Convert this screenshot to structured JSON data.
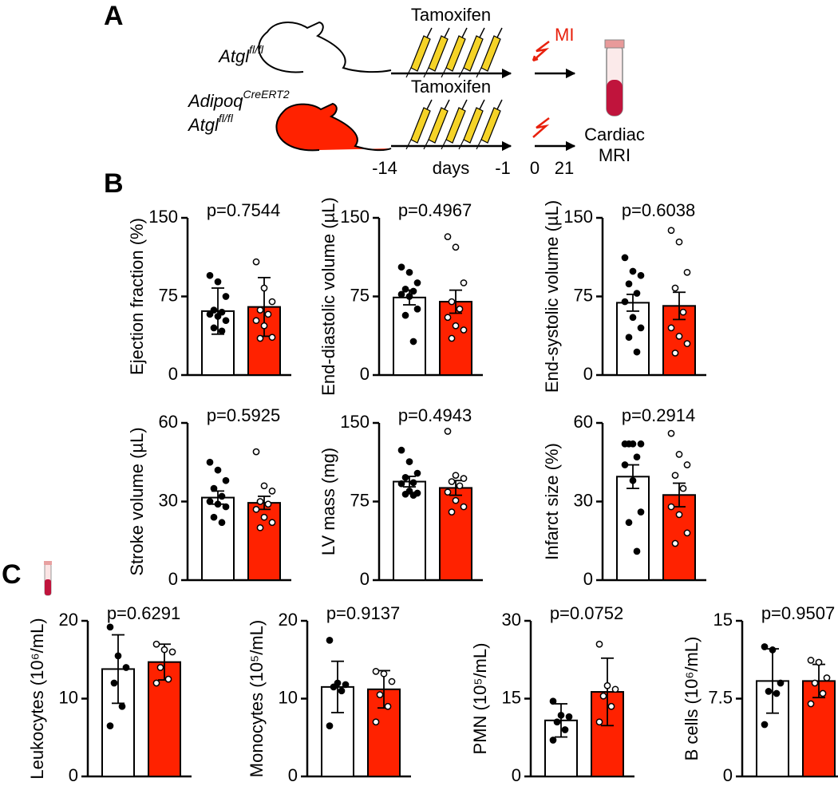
{
  "panel_labels": [
    "A",
    "B",
    "C"
  ],
  "schematic": {
    "genotype1": {
      "gene": "Atgl",
      "sup": "fl/fl"
    },
    "genotype2": [
      {
        "gene": "Adipoq",
        "sup": "CreERT2"
      },
      {
        "gene": "Atgl",
        "sup": "fl/fl"
      }
    ],
    "treatment1": "Tamoxifen",
    "treatment2": "Tamoxifen",
    "injury": "MI",
    "timeline": [
      "-14",
      "days",
      "-1",
      "0",
      "21"
    ],
    "readout": [
      "Cardiac",
      "MRI"
    ]
  },
  "chart_data": [
    {
      "type": "bar",
      "title": "p=0.7544",
      "ylabel": "Ejection fraction (%)",
      "categories": [
        null,
        null
      ],
      "colors": [
        "#ffffff",
        "#ff2200"
      ],
      "values": [
        61,
        65
      ],
      "errors": [
        22,
        28
      ],
      "points": [
        [
          95,
          89,
          75,
          62,
          60,
          58,
          56,
          52,
          45,
          42
        ],
        [
          108,
          83,
          70,
          62,
          58,
          52,
          47,
          36,
          35
        ]
      ],
      "ylim": [
        0,
        150
      ],
      "yticks": [
        0,
        75,
        150
      ]
    },
    {
      "type": "bar",
      "title": "p=0.4967",
      "ylabel": "End-diastolic volume (µL)",
      "categories": [
        null,
        null
      ],
      "colors": [
        "#ffffff",
        "#ff2200"
      ],
      "values": [
        74,
        70
      ],
      "errors": [
        7,
        11
      ],
      "points": [
        [
          103,
          98,
          88,
          82,
          80,
          77,
          75,
          63,
          57,
          32
        ],
        [
          132,
          122,
          88,
          70,
          63,
          55,
          47,
          43,
          35
        ]
      ],
      "ylim": [
        0,
        150
      ],
      "yticks": [
        0,
        75,
        150
      ]
    },
    {
      "type": "bar",
      "title": "p=0.6038",
      "ylabel": "End-systolic volume (µL)",
      "categories": [
        null,
        null
      ],
      "colors": [
        "#ffffff",
        "#ff2200"
      ],
      "values": [
        69,
        66
      ],
      "errors": [
        8,
        13
      ],
      "points": [
        [
          112,
          99,
          95,
          87,
          78,
          70,
          55,
          45,
          36,
          22
        ],
        [
          138,
          127,
          98,
          83,
          60,
          45,
          37,
          30,
          21
        ]
      ],
      "ylim": [
        0,
        150
      ],
      "yticks": [
        0,
        75,
        150
      ]
    },
    {
      "type": "bar",
      "title": "p=0.5925",
      "ylabel": "Stroke volume (µL)",
      "categories": [
        null,
        null
      ],
      "colors": [
        "#ffffff",
        "#ff2200"
      ],
      "values": [
        31.5,
        29.5
      ],
      "errors": [
        2.5,
        2.5
      ],
      "points": [
        [
          45,
          42,
          38,
          35,
          32,
          30,
          29,
          28,
          24,
          22
        ],
        [
          49,
          36,
          34,
          30,
          29,
          27,
          24,
          22,
          20
        ]
      ],
      "ylim": [
        0,
        60
      ],
      "yticks": [
        0,
        30,
        60
      ]
    },
    {
      "type": "bar",
      "title": "p=0.4943",
      "ylabel": "LV mass (mg)",
      "categories": [
        null,
        null
      ],
      "colors": [
        "#ffffff",
        "#ff2200"
      ],
      "values": [
        94,
        88
      ],
      "errors": [
        5,
        7
      ],
      "points": [
        [
          124,
          113,
          102,
          98,
          93,
          92,
          85,
          83,
          82,
          81
        ],
        [
          142,
          100,
          97,
          94,
          90,
          84,
          76,
          70,
          65
        ]
      ],
      "ylim": [
        0,
        150
      ],
      "yticks": [
        0,
        75,
        150
      ]
    },
    {
      "type": "bar",
      "title": "p=0.2914",
      "ylabel": "Infarct size (%)",
      "categories": [
        null,
        null
      ],
      "colors": [
        "#ffffff",
        "#ff2200"
      ],
      "values": [
        39.5,
        32.5
      ],
      "errors": [
        4.5,
        4.5
      ],
      "points": [
        [
          52,
          52,
          52,
          52,
          47,
          44,
          38,
          26,
          22,
          11
        ],
        [
          56,
          48,
          44,
          40,
          35,
          28,
          25,
          18,
          14
        ]
      ],
      "ylim": [
        0,
        60
      ],
      "yticks": [
        0,
        30,
        60
      ]
    },
    {
      "type": "bar",
      "title": "p=0.6291",
      "ylabel": "Leukocytes (10⁶/mL)",
      "categories": [
        null,
        null
      ],
      "colors": [
        "#ffffff",
        "#ff2200"
      ],
      "values": [
        13.8,
        14.7
      ],
      "errors": [
        4.4,
        2.3
      ],
      "points": [
        [
          19.2,
          15.5,
          14.0,
          12.0,
          9.0,
          6.5
        ],
        [
          17,
          16.3,
          16.0,
          14,
          12.5,
          12
        ]
      ],
      "ylim": [
        0,
        20
      ],
      "yticks": [
        0,
        10,
        20
      ]
    },
    {
      "type": "bar",
      "title": "p=0.9137",
      "ylabel": "Monocytes (10⁵/mL)",
      "categories": [
        null,
        null
      ],
      "colors": [
        "#ffffff",
        "#ff2200"
      ],
      "values": [
        11.5,
        11.2
      ],
      "errors": [
        3.3,
        2.4
      ],
      "points": [
        [
          17.5,
          12.0,
          11.8,
          11.5,
          11.0,
          6.5
        ],
        [
          13.5,
          13.2,
          12.2,
          10.5,
          9.0,
          7.0
        ]
      ],
      "ylim": [
        0,
        20
      ],
      "yticks": [
        0,
        10,
        20
      ]
    },
    {
      "type": "bar",
      "title": "p=0.0752",
      "ylabel": "PMN (10⁵/mL)",
      "categories": [
        null,
        null
      ],
      "colors": [
        "#ffffff",
        "#ff2200"
      ],
      "values": [
        10.8,
        16.3
      ],
      "errors": [
        3.2,
        6.5
      ],
      "points": [
        [
          14.5,
          11.8,
          11.5,
          10.5,
          9.0,
          7.0
        ],
        [
          25.5,
          17.5,
          16.8,
          15.5,
          13.5,
          10.5
        ]
      ],
      "ylim": [
        0,
        30
      ],
      "yticks": [
        0,
        15,
        30
      ]
    },
    {
      "type": "bar",
      "title": "p=0.9507",
      "ylabel": "B cells (10⁶/mL)",
      "categories": [
        null,
        null
      ],
      "colors": [
        "#ffffff",
        "#ff2200"
      ],
      "values": [
        9.2,
        9.2
      ],
      "errors": [
        3.1,
        1.6
      ],
      "points": [
        [
          12.5,
          12.2,
          9.0,
          8.2,
          8.0,
          5.0
        ],
        [
          11.2,
          11.0,
          9.5,
          9.0,
          8.0,
          7.0
        ]
      ],
      "ylim": [
        0,
        15
      ],
      "yticks": [
        0,
        7.5,
        15
      ]
    }
  ]
}
